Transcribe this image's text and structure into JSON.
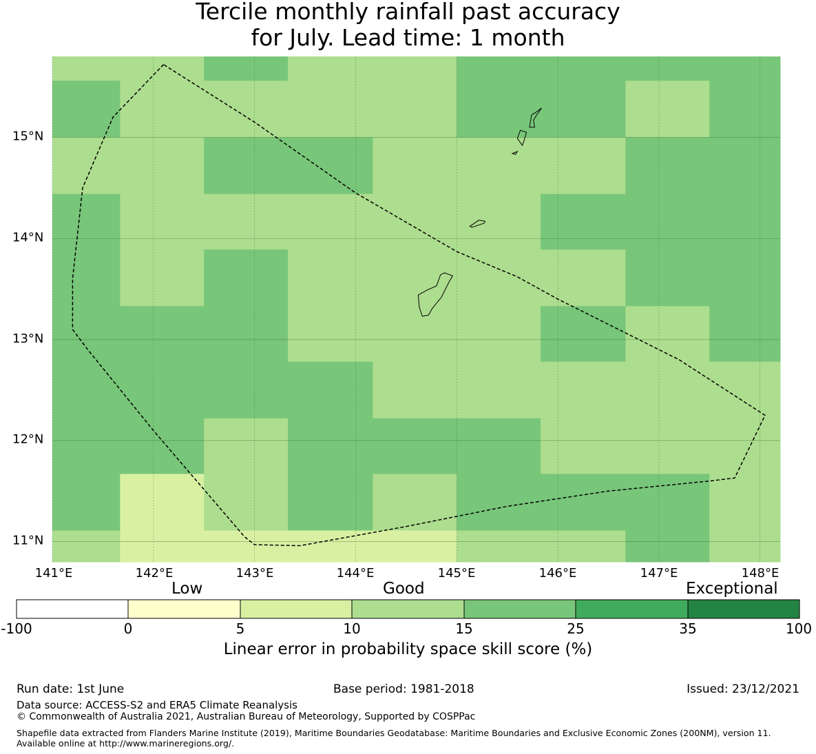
{
  "title": {
    "line1": "Tercile monthly rainfall past accuracy",
    "line2": "for July. Lead time: 1 month"
  },
  "map": {
    "lon_ticks": [
      "141°E",
      "142°E",
      "143°E",
      "144°E",
      "145°E",
      "146°E",
      "147°E",
      "148°E"
    ],
    "lat_ticks": [
      "15°N",
      "14°N",
      "13°N",
      "12°N",
      "11°N"
    ],
    "lon_range_deg": [
      141.0,
      148.2
    ],
    "lat_range_deg": [
      10.8,
      15.8
    ],
    "grid_lon_edges_deg": [
      141.0,
      141.67,
      142.5,
      143.33,
      144.17,
      145.0,
      145.83,
      146.67,
      147.5,
      148.2
    ],
    "grid_lat_edges_deg": [
      15.8,
      15.56,
      15.0,
      14.44,
      13.89,
      13.33,
      12.78,
      12.22,
      11.67,
      11.11,
      10.8
    ],
    "skill_class_rows_north_to_south": [
      [
        3,
        3,
        4,
        3,
        3,
        4,
        4,
        4,
        4
      ],
      [
        4,
        3,
        3,
        3,
        3,
        4,
        4,
        3,
        4
      ],
      [
        3,
        3,
        4,
        4,
        3,
        3,
        3,
        4,
        4
      ],
      [
        4,
        3,
        3,
        3,
        3,
        3,
        4,
        4,
        4
      ],
      [
        4,
        3,
        4,
        3,
        3,
        3,
        3,
        4,
        4
      ],
      [
        4,
        4,
        4,
        3,
        3,
        3,
        4,
        3,
        4
      ],
      [
        4,
        4,
        4,
        4,
        3,
        3,
        3,
        3,
        3
      ],
      [
        4,
        4,
        3,
        4,
        4,
        4,
        3,
        3,
        3
      ],
      [
        4,
        2,
        3,
        4,
        3,
        4,
        4,
        4,
        3
      ],
      [
        3,
        2,
        2,
        2,
        2,
        3,
        3,
        4,
        3
      ]
    ],
    "eez_boundary_lonlat": [
      [
        142.1,
        15.72
      ],
      [
        141.6,
        15.2
      ],
      [
        141.3,
        14.5
      ],
      [
        141.2,
        13.6
      ],
      [
        141.2,
        13.1
      ],
      [
        141.35,
        12.9
      ],
      [
        142.0,
        12.1
      ],
      [
        142.9,
        11.05
      ],
      [
        143.0,
        10.97
      ],
      [
        143.45,
        10.96
      ],
      [
        144.5,
        11.15
      ],
      [
        145.5,
        11.35
      ],
      [
        146.5,
        11.5
      ],
      [
        147.5,
        11.6
      ],
      [
        147.75,
        11.63
      ],
      [
        148.05,
        12.25
      ],
      [
        147.2,
        12.8
      ],
      [
        146.0,
        13.4
      ],
      [
        145.6,
        13.62
      ],
      [
        145.0,
        13.87
      ],
      [
        144.0,
        14.45
      ],
      [
        143.0,
        15.15
      ],
      [
        142.1,
        15.72
      ]
    ],
    "islands_lonlat": [
      [
        [
          144.66,
          13.23
        ],
        [
          144.72,
          13.24
        ],
        [
          144.76,
          13.31
        ],
        [
          144.85,
          13.42
        ],
        [
          144.93,
          13.58
        ],
        [
          144.96,
          13.63
        ],
        [
          144.88,
          13.66
        ],
        [
          144.84,
          13.64
        ],
        [
          144.8,
          13.53
        ],
        [
          144.71,
          13.49
        ],
        [
          144.62,
          13.44
        ],
        [
          144.63,
          13.32
        ]
      ],
      [
        [
          145.13,
          14.12
        ],
        [
          145.22,
          14.18
        ],
        [
          145.28,
          14.17
        ],
        [
          145.27,
          14.15
        ],
        [
          145.21,
          14.13
        ],
        [
          145.15,
          14.11
        ]
      ],
      [
        [
          145.65,
          14.92
        ],
        [
          145.6,
          14.99
        ],
        [
          145.63,
          15.07
        ],
        [
          145.69,
          15.05
        ],
        [
          145.67,
          14.98
        ]
      ],
      [
        [
          145.72,
          15.1
        ],
        [
          145.74,
          15.22
        ],
        [
          145.8,
          15.26
        ],
        [
          145.84,
          15.29
        ],
        [
          145.79,
          15.22
        ],
        [
          145.76,
          15.17
        ],
        [
          145.77,
          15.1
        ]
      ],
      [
        [
          145.55,
          14.84
        ],
        [
          145.6,
          14.86
        ],
        [
          145.58,
          14.83
        ]
      ]
    ]
  },
  "colorbar": {
    "categories": [
      {
        "label": "Low",
        "at_tick_index": 1
      },
      {
        "label": "Good",
        "at_tick_index": 3
      },
      {
        "label": "Exceptional",
        "at_tick_index": 6
      }
    ],
    "ticks": [
      "-100",
      "0",
      "5",
      "10",
      "15",
      "25",
      "35",
      "100"
    ],
    "colors": [
      "#ffffff",
      "#ffffcc",
      "#d9f0a3",
      "#addd8e",
      "#78c679",
      "#41ab5d",
      "#238443"
    ],
    "label": "Linear error in probability space skill score (%)"
  },
  "footer": {
    "run_date": "Run date: 1st June",
    "base_period": "Base period: 1981-2018",
    "issued": "Issued: 23/12/2021",
    "data_source": "Data source: ACCESS-S2 and ERA5 Climate Reanalysis",
    "copyright": "© Commonwealth of Australia 2021, Australian Bureau of Meteorology, Supported by COSPPac",
    "shapefile": "Shapefile data extracted from Flanders Marine Institute (2019), Maritime Boundaries Geodatabase: Maritime Boundaries and Exclusive Economic Zones (200NM), version 11. Available online at http://www.marineregions.org/."
  }
}
